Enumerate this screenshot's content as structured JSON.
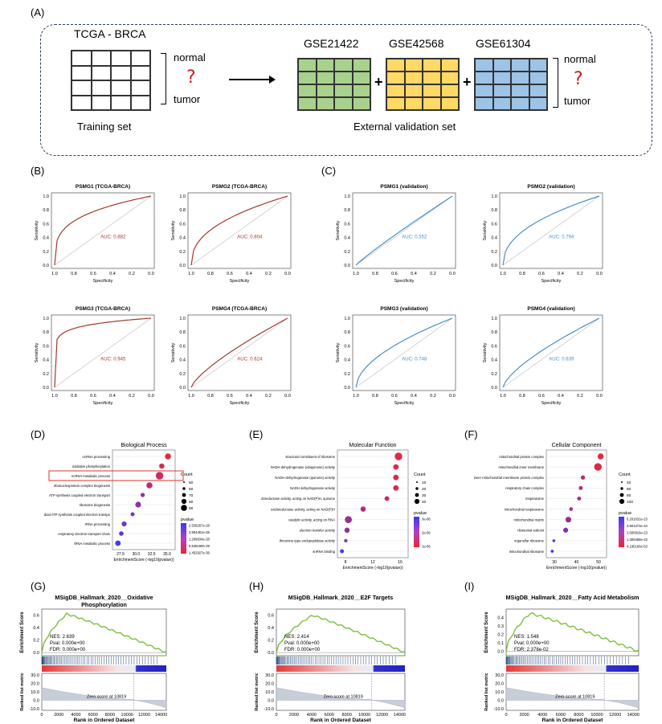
{
  "panels": {
    "A": "(A)",
    "B": "(B)",
    "C": "(C)",
    "D": "(D)",
    "E": "(E)",
    "F": "(F)",
    "G": "(G)",
    "H": "(H)",
    "I": "(I)"
  },
  "schema": {
    "training_title": "TCGA - BRCA",
    "training_caption": "Training set",
    "validation_caption": "External validation set",
    "datasets": [
      "GSE21422",
      "GSE42568",
      "GSE61304"
    ],
    "normal_label": "normal",
    "tumor_label": "tumor",
    "question": "?",
    "plus": "+",
    "colors": {
      "gse1": "#a9d18e",
      "gse2": "#ffd966",
      "gse3": "#9dc3e6",
      "question": "#cc1f1f"
    }
  },
  "roc": {
    "sensitivity": "Sensitivity",
    "specificity": "Specificity",
    "x_ticks": [
      "1.0",
      "0.8",
      "0.6",
      "0.4",
      "0.2",
      "0.0"
    ],
    "y_ticks": [
      "0.0",
      "0.2",
      "0.4",
      "0.6",
      "0.8",
      "1.0"
    ],
    "tcga_color": "#a33a2e",
    "val_color": "#4b8fc7",
    "plots": [
      {
        "title": "PSMG1 (TCGA-BRCA)",
        "auc": "AUC: 0.882"
      },
      {
        "title": "PSMG2 (TCGA-BRCA)",
        "auc": "AUC: 0.804"
      },
      {
        "title": "PSMG3 (TCGA-BRCA)",
        "auc": "AUC: 0.945"
      },
      {
        "title": "PSMG4 (TCGA-BRCA)",
        "auc": "AUC: 0.624"
      },
      {
        "title": "PSMG1 (validation)",
        "auc": "AUC: 0.552"
      },
      {
        "title": "PSMG2 (validation)",
        "auc": "AUC: 0.794"
      },
      {
        "title": "PSMG3 (validation)",
        "auc": "AUC: 0.748"
      },
      {
        "title": "PSMG4 (validation)",
        "auc": "AUC: 0.639"
      }
    ]
  },
  "go": {
    "count_label": "Count",
    "pvalue_label": "pvalue",
    "xlabel": "EnrichmentScore (-log10(pvalue))",
    "plots": [
      {
        "title": "Biological Process",
        "terms": [
          "ncRNA processing",
          "oxidative phosphorylation",
          "ncRNA metabolic process",
          "ribonucleoprotein complex biogenesis",
          "ATP synthesis coupled electron transport",
          "ribosome biogenesis",
          "mitochondrial ATP synthesis coupled electron transport",
          "rRNA processing",
          "respiratory electron transport chain",
          "tRNA metabolic process"
        ],
        "x_ticks": [
          "27.5",
          "30.0",
          "32.5",
          "35.0"
        ],
        "count_ticks": [
          "50",
          "60",
          "70",
          "80",
          "90"
        ],
        "pvalue_ticks": [
          "2.539267e-28",
          "3.904451e-28",
          "1.269934e-28",
          "6.548169e-29",
          "1.452927e-36"
        ]
      },
      {
        "title": "Molecular Function",
        "terms": [
          "structural constituent of ribosome",
          "NADH dehydrogenase (ubiquinone) activity",
          "NADH dehydrogenase (quinone) activity",
          "NADH dehydrogenase activity",
          "oxidoreductase activity, acting on NAD(P)H, quinone or similar compound as acceptor",
          "oxidoreductase activity, acting on NAD(P)H",
          "catalytic activity, acting on RNA",
          "electron transfer activity",
          "threonine-type endopeptidase activity",
          "snRNA binding"
        ],
        "x_ticks": [
          "8",
          "12",
          "16"
        ],
        "count_ticks": [
          "10",
          "20",
          "30",
          "40"
        ],
        "pvalue_ticks": [
          "3e-06",
          "2e-06",
          "1e-06"
        ]
      },
      {
        "title": "Cellular Component",
        "terms": [
          "mitochondrial protein complex",
          "mitochondrial inner membrane",
          "inner mitochondrial membrane protein complex",
          "respiratory chain complex",
          "respirasome",
          "mitochondrial respirasome",
          "mitochondrial matrix",
          "ribosomal subunit",
          "organellar ribosome",
          "mitochondrial ribosome"
        ],
        "x_ticks": [
          "30",
          "40",
          "50"
        ],
        "count_ticks": [
          "40",
          "60",
          "80",
          "100"
        ],
        "pvalue_ticks": [
          "5.201631e-23",
          "3.901373e-23",
          "2.600916e-23",
          "1.300458e-23",
          "4.195160e-53"
        ]
      }
    ]
  },
  "gsea": {
    "es_label": "Enrichment Score",
    "rank_label": "Ranked list metric",
    "xlabel": "Rank in Ordered Dataset",
    "zero_text": "Zero score at 10819",
    "x_ticks": [
      "0",
      "2000",
      "4000",
      "6000",
      "8000",
      "10000",
      "12000",
      "14000"
    ],
    "rank_ticks": [
      "30.0",
      "20.0",
      "10.0",
      "0.0",
      "-10.0"
    ],
    "curve_color": "#7fbf3f",
    "plots": [
      {
        "title_line1": "MSigDB_Hallmark_2020__Oxidative",
        "title_line2": "Phosphorylation",
        "nes": "NES: 2.639",
        "pval": "Pval: 0.000e+00",
        "fdr": "FDR: 0.000e+00",
        "es_ticks": [
          "0.6",
          "0.4",
          "0.2",
          "0.0"
        ]
      },
      {
        "title_line1": "MSigDB_Hallmark_2020__E2F Targets",
        "title_line2": "",
        "nes": "NES: 2.414",
        "pval": "Pval: 0.000e+00",
        "fdr": "FDR: 0.000e+00",
        "es_ticks": [
          "0.6",
          "0.4",
          "0.2",
          "0.0"
        ]
      },
      {
        "title_line1": "MSigDB_Hallmark_2020__Fatty Acid Metabolism",
        "title_line2": "",
        "nes": "NES: 1.548",
        "pval": "Pval: 0.000e+00",
        "fdr": "FDR: 2.378e-02",
        "es_ticks": [
          "0.4",
          "0.3",
          "0.2",
          "0.1",
          "0.0"
        ]
      }
    ]
  }
}
